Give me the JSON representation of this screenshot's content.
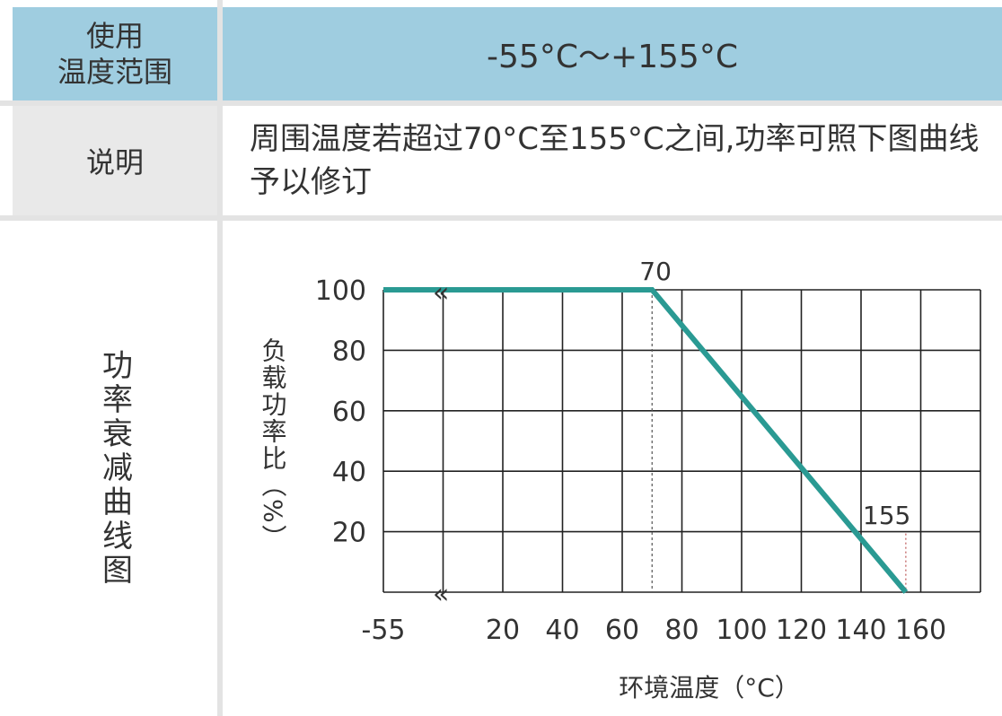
{
  "table": {
    "range_label": "使用\n温度范围",
    "range_value": "-55°C～+155°C",
    "desc_label": "说明",
    "desc_text": "周围温度若超过70°C至155°C之间,功率可照下图曲线予以修订",
    "curve_label": "功率衰减曲线图"
  },
  "colors": {
    "header_bg": "#9fcde0",
    "label_bg": "#e9e9e9",
    "curve": "#2a9a93",
    "grid": "#222222"
  },
  "chart_data": {
    "type": "line",
    "x_ticks": [
      "-55",
      "20",
      "40",
      "60",
      "80",
      "100",
      "120",
      "140",
      "160"
    ],
    "y_ticks": [
      "100",
      "80",
      "60",
      "40",
      "20"
    ],
    "ylabel": "负载功率比（%）",
    "xlabel": "环境温度（°C）",
    "xlim": [
      -55,
      160
    ],
    "ylim": [
      0,
      100
    ],
    "series": [
      {
        "x": [
          -55,
          70,
          155
        ],
        "y": [
          100,
          100,
          0
        ]
      }
    ],
    "annotations": [
      "70",
      "155"
    ],
    "break_marks": [
      "«",
      "«"
    ],
    "grid": true
  }
}
